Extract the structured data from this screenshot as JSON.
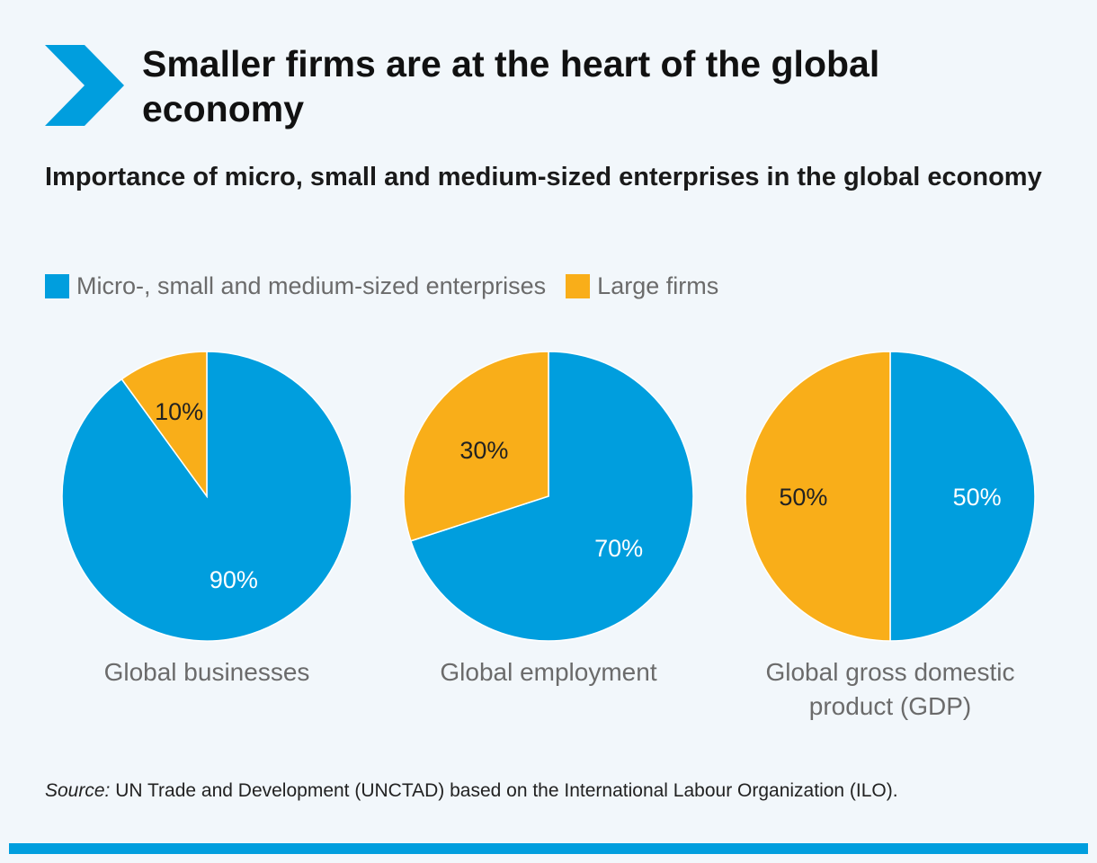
{
  "title": "Smaller firms are at the heart of the global economy",
  "subtitle": "Importance of micro, small and medium-sized enterprises in the global economy",
  "colors": {
    "accent": "#009ede",
    "sme": "#009ede",
    "large": "#f9ae19"
  },
  "legend": [
    {
      "label": "Micro-, small and medium-sized enterprises",
      "color": "#009ede"
    },
    {
      "label": "Large firms",
      "color": "#f9ae19"
    }
  ],
  "chart_data": [
    {
      "type": "pie",
      "xlabel_lines": [
        "Global businesses"
      ],
      "slices": [
        {
          "name": "Micro-, small and medium-sized enterprises",
          "value": 90,
          "label": "90%"
        },
        {
          "name": "Large firms",
          "value": 10,
          "label": "10%"
        }
      ]
    },
    {
      "type": "pie",
      "xlabel_lines": [
        "Global employment"
      ],
      "slices": [
        {
          "name": "Micro-, small and medium-sized enterprises",
          "value": 70,
          "label": "70%"
        },
        {
          "name": "Large firms",
          "value": 30,
          "label": "30%"
        }
      ]
    },
    {
      "type": "pie",
      "xlabel_lines": [
        "Global gross domestic",
        "product (GDP)"
      ],
      "slices": [
        {
          "name": "Micro-, small and medium-sized enterprises",
          "value": 50,
          "label": "50%"
        },
        {
          "name": "Large firms",
          "value": 50,
          "label": "50%"
        }
      ]
    }
  ],
  "source": {
    "prefix": "Source:",
    "text": " UN Trade and Development (UNCTAD) based on the International Labour Organization (ILO)."
  }
}
